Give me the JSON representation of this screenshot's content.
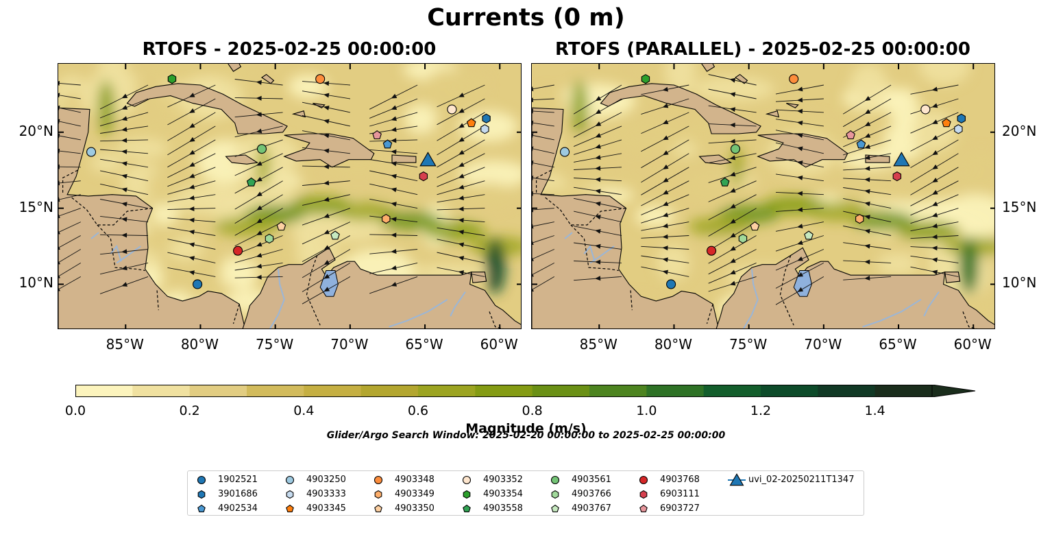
{
  "figure": {
    "title": "Currents (0 m)",
    "left_panel_title": "RTOFS - 2025-02-25 00:00:00",
    "right_panel_title": "RTOFS (PARALLEL) - 2025-02-25 00:00:00",
    "search_window": "Glider/Argo Search Window: 2025-02-20 00:00:00 to 2025-02-25 00:00:00"
  },
  "axes": {
    "x_ticks": [
      "85°W",
      "80°W",
      "75°W",
      "70°W",
      "65°W",
      "60°W"
    ],
    "x_tick_values": [
      -85,
      -80,
      -75,
      -70,
      -65,
      -60
    ],
    "y_ticks": [
      "20°N",
      "15°N",
      "10°N"
    ],
    "y_tick_values": [
      20,
      15,
      10
    ],
    "lon_range": [
      -89.5,
      -58.5
    ],
    "lat_range": [
      7.0,
      24.5
    ]
  },
  "colorbar": {
    "label": "Magnitude (m/s)",
    "tick_labels": [
      "0.0",
      "0.2",
      "0.4",
      "0.6",
      "0.8",
      "1.0",
      "1.2",
      "1.4"
    ],
    "range": [
      0,
      1.5
    ],
    "extend": "max",
    "colors": [
      "#fcf4bd",
      "#f0e1a0",
      "#e2cd82",
      "#d2bb5c",
      "#c5af42",
      "#b3a62f",
      "#9ca421",
      "#849b13",
      "#6a9015",
      "#4d8420",
      "#2e7226",
      "#135e2c",
      "#0d4b2a",
      "#113925",
      "#1a2d1c"
    ]
  },
  "map_colors": {
    "land": "#d2b48c",
    "water_body": "#8fb1dd",
    "rivers": "#9ab6d8",
    "background_current": "#d9cf8a"
  },
  "legend": {
    "items": [
      {
        "label": "1902521",
        "marker": "circle",
        "color": "#1f77b4"
      },
      {
        "label": "3901686",
        "marker": "hexagon",
        "color": "#1f77b4"
      },
      {
        "label": "4902534",
        "marker": "pentagon",
        "color": "#4a98d2"
      },
      {
        "label": "4903250",
        "marker": "circle",
        "color": "#9ecae1"
      },
      {
        "label": "4903333",
        "marker": "hexagon",
        "color": "#c6dbef"
      },
      {
        "label": "4903345",
        "marker": "pentagon",
        "color": "#ff7f0e"
      },
      {
        "label": "4903348",
        "marker": "circle",
        "color": "#fd8d3c"
      },
      {
        "label": "4903349",
        "marker": "hexagon",
        "color": "#fdae6b"
      },
      {
        "label": "4903350",
        "marker": "pentagon",
        "color": "#fdd0a2"
      },
      {
        "label": "4903352",
        "marker": "circle",
        "color": "#fee6ce"
      },
      {
        "label": "4903354",
        "marker": "hexagon",
        "color": "#2ca02c"
      },
      {
        "label": "4903558",
        "marker": "pentagon",
        "color": "#31a354"
      },
      {
        "label": "4903561",
        "marker": "circle",
        "color": "#74c476"
      },
      {
        "label": "4903766",
        "marker": "hexagon",
        "color": "#a1d99b"
      },
      {
        "label": "4903767",
        "marker": "pentagon",
        "color": "#c7e9c0"
      },
      {
        "label": "4903768",
        "marker": "circle",
        "color": "#d62728"
      },
      {
        "label": "6903111",
        "marker": "hexagon",
        "color": "#d6404e"
      },
      {
        "label": "6903727",
        "marker": "pentagon",
        "color": "#e7969c"
      },
      {
        "label": "uvi_02-20250211T1347",
        "marker": "triangle",
        "color": "#1f77b4"
      }
    ]
  },
  "markers_left": [
    {
      "id": "1902521",
      "lon": -80.2,
      "lat": 10.0
    },
    {
      "id": "3901686",
      "lon": -60.9,
      "lat": 20.9
    },
    {
      "id": "4902534",
      "lon": -67.5,
      "lat": 19.2
    },
    {
      "id": "4903250",
      "lon": -87.3,
      "lat": 18.7
    },
    {
      "id": "4903333",
      "lon": -61.0,
      "lat": 20.2
    },
    {
      "id": "4903345",
      "lon": -61.9,
      "lat": 20.6
    },
    {
      "id": "4903348",
      "lon": -72.0,
      "lat": 23.5
    },
    {
      "id": "4903349",
      "lon": -67.6,
      "lat": 14.3
    },
    {
      "id": "4903350",
      "lon": -74.6,
      "lat": 13.8
    },
    {
      "id": "4903352",
      "lon": -63.2,
      "lat": 21.5
    },
    {
      "id": "4903354",
      "lon": -81.9,
      "lat": 23.5
    },
    {
      "id": "4903558",
      "lon": -76.6,
      "lat": 16.7
    },
    {
      "id": "4903561",
      "lon": -75.9,
      "lat": 18.9
    },
    {
      "id": "4903766",
      "lon": -75.4,
      "lat": 13.0
    },
    {
      "id": "4903767",
      "lon": -71.0,
      "lat": 13.2
    },
    {
      "id": "4903768",
      "lon": -77.5,
      "lat": 12.2
    },
    {
      "id": "6903111",
      "lon": -65.1,
      "lat": 17.1
    },
    {
      "id": "6903727",
      "lon": -68.2,
      "lat": 19.8
    },
    {
      "id": "uvi_02-20250211T1347",
      "lon": -64.8,
      "lat": 18.2
    }
  ],
  "markers_right": [
    {
      "id": "1902521",
      "lon": -80.2,
      "lat": 10.0
    },
    {
      "id": "3901686",
      "lon": -60.8,
      "lat": 20.9
    },
    {
      "id": "4902534",
      "lon": -67.5,
      "lat": 19.2
    },
    {
      "id": "4903250",
      "lon": -87.3,
      "lat": 18.7
    },
    {
      "id": "4903333",
      "lon": -61.0,
      "lat": 20.2
    },
    {
      "id": "4903345",
      "lon": -61.8,
      "lat": 20.6
    },
    {
      "id": "4903348",
      "lon": -72.0,
      "lat": 23.5
    },
    {
      "id": "4903349",
      "lon": -67.6,
      "lat": 14.3
    },
    {
      "id": "4903350",
      "lon": -74.6,
      "lat": 13.8
    },
    {
      "id": "4903352",
      "lon": -63.2,
      "lat": 21.5
    },
    {
      "id": "4903354",
      "lon": -81.9,
      "lat": 23.5
    },
    {
      "id": "4903558",
      "lon": -76.6,
      "lat": 16.7
    },
    {
      "id": "4903561",
      "lon": -75.9,
      "lat": 18.9
    },
    {
      "id": "4903766",
      "lon": -75.4,
      "lat": 13.0
    },
    {
      "id": "4903767",
      "lon": -71.0,
      "lat": 13.2
    },
    {
      "id": "4903768",
      "lon": -77.5,
      "lat": 12.2
    },
    {
      "id": "6903111",
      "lon": -65.1,
      "lat": 17.1
    },
    {
      "id": "6903727",
      "lon": -68.2,
      "lat": 19.8
    },
    {
      "id": "uvi_02-20250211T1347",
      "lon": -64.8,
      "lat": 18.2
    }
  ]
}
